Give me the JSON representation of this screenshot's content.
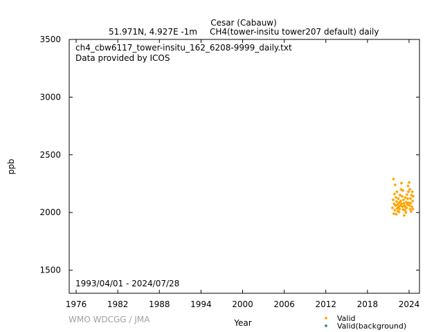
{
  "header": {
    "station": "Cesar (Cabauw)",
    "location": "51.971N, 4.927E -1m",
    "parameter": "CH4(tower-insitu tower207 default) daily"
  },
  "annotation": {
    "filename": "ch4_cbw6117_tower-insitu_162_6208-9999_daily.txt",
    "provider": "Data provided by ICOS",
    "period": "1993/04/01 - 2024/07/28"
  },
  "credit": "WMO WDCGG / JMA",
  "chart_data": {
    "type": "scatter",
    "xlabel": "Year",
    "ylabel": "ppb",
    "xlim": [
      1975,
      2025.5
    ],
    "ylim": [
      1300,
      3500
    ],
    "x_ticks": [
      1976,
      1982,
      1988,
      1994,
      2000,
      2006,
      2012,
      2018,
      2024
    ],
    "y_ticks": [
      1500,
      2000,
      2500,
      3000,
      3500
    ],
    "grid": false,
    "legend_position": "bottom-right",
    "series": [
      {
        "name": "Valid",
        "color": "#ffa500",
        "points": [
          [
            2021.6,
            2040
          ],
          [
            2021.7,
            2110
          ],
          [
            2021.75,
            2290
          ],
          [
            2021.8,
            1990
          ],
          [
            2021.85,
            2075
          ],
          [
            2021.9,
            2160
          ],
          [
            2021.95,
            2020
          ],
          [
            2022.0,
            2240
          ],
          [
            2022.05,
            2060
          ],
          [
            2022.1,
            2130
          ],
          [
            2022.15,
            1985
          ],
          [
            2022.2,
            2095
          ],
          [
            2022.25,
            2180
          ],
          [
            2022.3,
            2035
          ],
          [
            2022.35,
            2070
          ],
          [
            2022.4,
            2010
          ],
          [
            2022.45,
            2120
          ],
          [
            2022.5,
            2050
          ],
          [
            2022.55,
            2005
          ],
          [
            2022.6,
            2085
          ],
          [
            2022.65,
            2030
          ],
          [
            2022.7,
            2150
          ],
          [
            2022.75,
            2060
          ],
          [
            2022.8,
            2100
          ],
          [
            2022.85,
            2200
          ],
          [
            2022.9,
            2255
          ],
          [
            2022.95,
            2075
          ],
          [
            2023.0,
            2140
          ],
          [
            2023.05,
            2050
          ],
          [
            2023.1,
            2190
          ],
          [
            2023.15,
            2025
          ],
          [
            2023.2,
            2110
          ],
          [
            2023.25,
            2080
          ],
          [
            2023.3,
            1975
          ],
          [
            2023.35,
            2060
          ],
          [
            2023.4,
            2020
          ],
          [
            2023.45,
            2130
          ],
          [
            2023.5,
            2045
          ],
          [
            2023.55,
            2000
          ],
          [
            2023.6,
            2090
          ],
          [
            2023.65,
            2040
          ],
          [
            2023.7,
            2155
          ],
          [
            2023.75,
            2070
          ],
          [
            2023.8,
            2120
          ],
          [
            2023.85,
            2230
          ],
          [
            2023.9,
            2180
          ],
          [
            2023.95,
            2085
          ],
          [
            2024.0,
            2260
          ],
          [
            2024.05,
            2060
          ],
          [
            2024.1,
            2200
          ],
          [
            2024.15,
            2030
          ],
          [
            2024.2,
            2120
          ],
          [
            2024.25,
            2080
          ],
          [
            2024.3,
            2010
          ],
          [
            2024.35,
            2150
          ],
          [
            2024.4,
            2050
          ],
          [
            2024.45,
            2180
          ],
          [
            2024.5,
            2100
          ],
          [
            2024.55,
            2030
          ],
          [
            2024.57,
            2140
          ]
        ]
      },
      {
        "name": "Valid(background)",
        "color": "#2e8b57",
        "points": []
      }
    ]
  }
}
